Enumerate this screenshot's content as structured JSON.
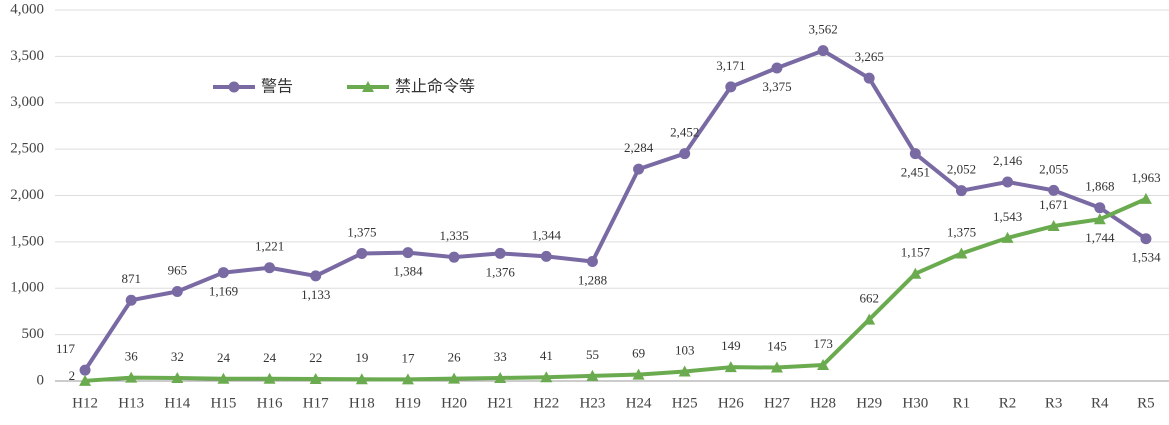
{
  "chart_data": {
    "type": "line",
    "categories": [
      "H12",
      "H13",
      "H14",
      "H15",
      "H16",
      "H17",
      "H18",
      "H19",
      "H20",
      "H21",
      "H22",
      "H23",
      "H24",
      "H25",
      "H26",
      "H27",
      "H28",
      "H29",
      "H30",
      "R1",
      "R2",
      "R3",
      "R4",
      "R5"
    ],
    "series": [
      {
        "name": "警告",
        "color": "#7a6aa3",
        "marker": "circle",
        "values": [
          117,
          871,
          965,
          1169,
          1221,
          1133,
          1375,
          1384,
          1335,
          1376,
          1344,
          1288,
          2284,
          2452,
          3171,
          3375,
          3562,
          3265,
          2451,
          2052,
          2146,
          2055,
          1868,
          1534
        ],
        "value_labels": [
          "117",
          "871",
          "965",
          "1,169",
          "1,221",
          "1,133",
          "1,375",
          "1,384",
          "1,335",
          "1,376",
          "1,344",
          "1,288",
          "2,284",
          "2,452",
          "3,171",
          "3,375",
          "3,562",
          "3,265",
          "2,451",
          "2,052",
          "2,146",
          "2,055",
          "1,868",
          "1,534"
        ]
      },
      {
        "name": "禁止命令等",
        "color": "#6bab4f",
        "marker": "triangle",
        "values": [
          2,
          36,
          32,
          24,
          24,
          22,
          19,
          17,
          26,
          33,
          41,
          55,
          69,
          103,
          149,
          145,
          173,
          662,
          1157,
          1375,
          1543,
          1671,
          1744,
          1963
        ],
        "value_labels": [
          "2",
          "36",
          "32",
          "24",
          "24",
          "22",
          "19",
          "17",
          "26",
          "33",
          "41",
          "55",
          "69",
          "103",
          "149",
          "145",
          "173",
          "662",
          "1,157",
          "1,375",
          "1,543",
          "1,671",
          "1,744",
          "1,963"
        ]
      }
    ],
    "ylim": [
      0,
      4000
    ],
    "yticks": [
      0,
      500,
      {
        "value": 1000,
        "label": "1,000"
      },
      {
        "value": 1500,
        "label": "1,500"
      },
      {
        "value": 2000,
        "label": "2,000"
      },
      {
        "value": 2500,
        "label": "2,500"
      },
      {
        "value": 3000,
        "label": "3,000"
      },
      {
        "value": 3500,
        "label": "3,500"
      },
      {
        "value": 4000,
        "label": "4,000"
      }
    ],
    "grid": true
  }
}
